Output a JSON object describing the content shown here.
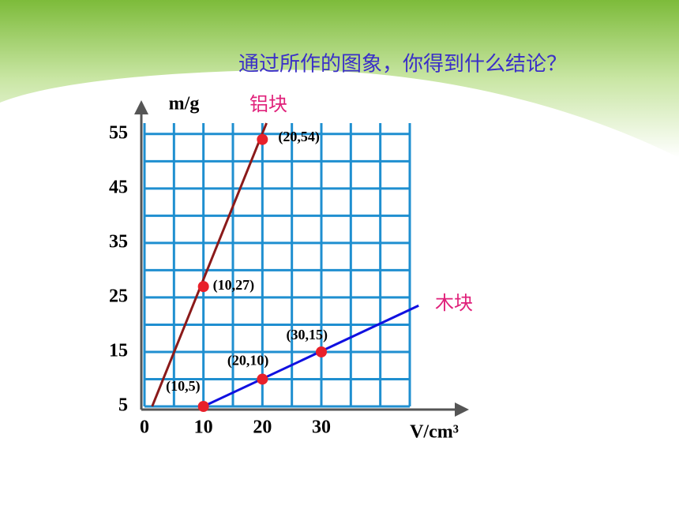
{
  "chart_data": {
    "type": "scatter",
    "title": "通过所作的图象，你得到什么结论？",
    "x_label": "V/cm³",
    "y_label": "m/g",
    "xlim": [
      0,
      45
    ],
    "ylim": [
      5,
      57
    ],
    "xticks": [
      0,
      10,
      20,
      30
    ],
    "yticks": [
      5,
      15,
      25,
      35,
      45,
      55
    ],
    "xgrid": [
      0,
      5,
      10,
      15,
      20,
      25,
      30,
      35,
      40,
      45
    ],
    "ygrid": [
      5,
      10,
      15,
      20,
      25,
      30,
      35,
      40,
      45,
      50,
      55
    ],
    "grid_color": "#1f8fd0",
    "point_color": "#e8202a",
    "name_color": "#e0207a",
    "series": [
      {
        "name": "铝块",
        "color": "#8b1a1a",
        "x": [
          10,
          20
        ],
        "values": [
          27,
          54
        ],
        "value_labels": [
          "(10,27)",
          "(20,54)"
        ],
        "line_x": [
          1.3,
          20.7
        ],
        "line_y": [
          5,
          57
        ]
      },
      {
        "name": "木块",
        "color": "#1010e0",
        "x": [
          10,
          20,
          30
        ],
        "values": [
          5,
          10,
          15
        ],
        "value_labels": [
          "(10,5)",
          "(20,10)",
          "(30,15)"
        ],
        "line_x": [
          10,
          46.5
        ],
        "line_y": [
          5,
          23.5
        ]
      }
    ]
  }
}
